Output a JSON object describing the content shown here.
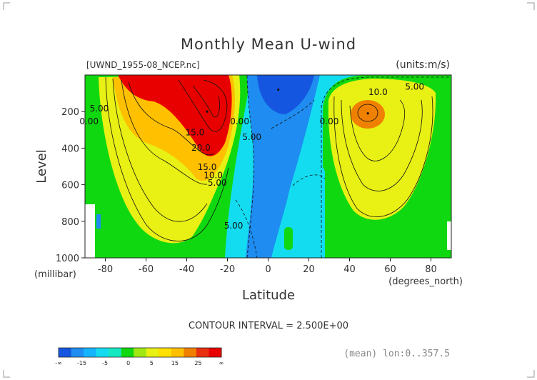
{
  "chart_data": {
    "type": "contour",
    "title": "Monthly Mean U-wind",
    "dataset": "[UWND_1955-08_NCEP.nc]",
    "units": "(units:m/s)",
    "xlabel": "Latitude",
    "xunits": "(degrees_north)",
    "ylabel": "Level",
    "yunits": "(millibar)",
    "xlim": [
      -90,
      90
    ],
    "ylim": [
      1000,
      0
    ],
    "x_ticks": [
      -80,
      -60,
      -40,
      -20,
      0,
      20,
      40,
      60,
      80
    ],
    "y_ticks": [
      200,
      400,
      600,
      800,
      1000
    ],
    "x_tick_labels": [
      "-80",
      "-60",
      "-40",
      "-20",
      "0",
      "20",
      "40",
      "60",
      "80"
    ],
    "y_tick_labels": [
      "200",
      "400",
      "600",
      "800",
      "1000"
    ],
    "contour_interval_text": "CONTOUR INTERVAL = 2.500E+00",
    "averaging_note": "(mean) lon:0..357.5",
    "jets": [
      {
        "lat": -30,
        "level": 200,
        "peak": 40
      },
      {
        "lat": 49,
        "level": 210,
        "peak": 20
      },
      {
        "lat": 5,
        "level": 80,
        "peak": -15
      }
    ],
    "contour_labels": [
      {
        "text": "5.00",
        "lat": -83,
        "level": 200
      },
      {
        "text": "0.00",
        "lat": -88,
        "level": 270
      },
      {
        "text": "15.0",
        "lat": -36,
        "level": 330
      },
      {
        "text": "20.0",
        "lat": -33,
        "level": 415
      },
      {
        "text": "15.0",
        "lat": -30,
        "level": 520
      },
      {
        "text": "10.0",
        "lat": -27,
        "level": 565
      },
      {
        "text": "5.00",
        "lat": -25,
        "level": 605
      },
      {
        "text": "0.00",
        "lat": -14,
        "level": 270
      },
      {
        "text": "5.00",
        "lat": -8,
        "level": 355
      },
      {
        "text": "0.00",
        "lat": 30,
        "level": 270
      },
      {
        "text": "10.0",
        "lat": 54,
        "level": 110
      },
      {
        "text": "5.00",
        "lat": 72,
        "level": 80
      },
      {
        "text": "5.00",
        "lat": -17,
        "level": 840
      }
    ],
    "colorbar": {
      "ticks": [
        "-∞",
        "-15",
        "-5",
        "0",
        "5",
        "15",
        "25",
        "∞"
      ],
      "colors": [
        "#1556e0",
        "#1e8cf0",
        "#14b4ff",
        "#14dcf0",
        "#14e8c0",
        "#10d810",
        "#a0e814",
        "#e8f014",
        "#ffe000",
        "#ffc000",
        "#f08000",
        "#e83010",
        "#e80000"
      ]
    }
  }
}
